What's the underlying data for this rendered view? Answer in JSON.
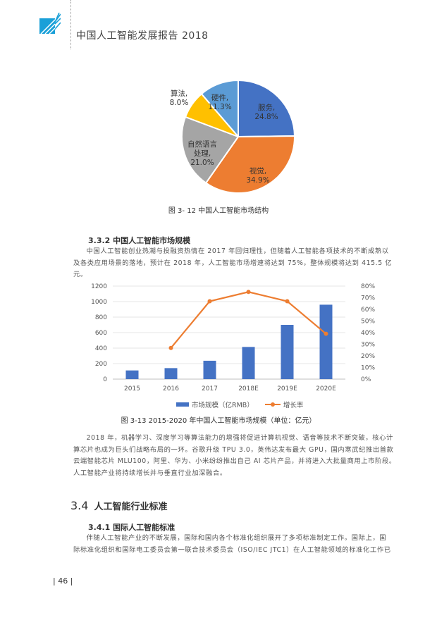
{
  "header": {
    "title": "中国人工智能发展报告 2018"
  },
  "colors": {
    "blue": "#4472c4",
    "orange": "#ed7d31",
    "gray": "#a5a5a5",
    "gold": "#ffc000",
    "light_blue": "#5b9bd5",
    "logo": "#1aa0d8"
  },
  "pie_chart": {
    "caption": "图 3- 12  中国人工智能市场结构"
  },
  "combo_chart": {
    "caption": "图 3-13  2015-2020 年中国人工智能市场规模（单位：亿元）"
  },
  "chart_data": [
    {
      "type": "pie",
      "slices": [
        {
          "label": "硬件,",
          "value_text": "11.3%",
          "value": 11.3,
          "color": "#5b9bd5"
        },
        {
          "label": "服务,",
          "value_text": "24.8%",
          "value": 24.8,
          "color": "#4472c4"
        },
        {
          "label": "视觉,",
          "value_text": "34.9%",
          "value": 34.9,
          "color": "#ed7d31"
        },
        {
          "label": "自然语言处理,",
          "label_lines": [
            "自然语言",
            "处理,"
          ],
          "value_text": "21.0%",
          "value": 21.0,
          "color": "#a5a5a5"
        },
        {
          "label": "算法,",
          "value_text": "8.0%",
          "value": 8.0,
          "color": "#ffc000"
        }
      ]
    },
    {
      "type": "bar+line",
      "categories": [
        "2015",
        "2016",
        "2017",
        "2018E",
        "2019E",
        "2020E"
      ],
      "series": [
        {
          "name": "市场规模（亿RMB）",
          "type": "bar",
          "axis": "left",
          "values": [
            112,
            142,
            237,
            415,
            700,
            960
          ],
          "color": "#4472c4"
        },
        {
          "name": "增长率",
          "type": "line",
          "axis": "right",
          "values": [
            null,
            26.8,
            67.0,
            75.0,
            67.0,
            39.0
          ],
          "color": "#ed7d31"
        }
      ],
      "left_axis": {
        "ylim": [
          0,
          1200
        ],
        "ticks": [
          "0",
          "200",
          "400",
          "600",
          "800",
          "1000",
          "1200"
        ]
      },
      "right_axis": {
        "ylim": [
          0,
          80
        ],
        "ticks": [
          "0%",
          "10%",
          "20%",
          "30%",
          "40%",
          "50%",
          "60%",
          "70%",
          "80%"
        ]
      },
      "grid": true,
      "legend_position": "bottom"
    }
  ],
  "section_332": {
    "title": "3.3.2 中国人工智能市场规模",
    "para_lines": [
      "中国人工智能创业热潮与投融资热情在 2017 年回归理性，但随着人工智能各项技术的不断成熟以",
      "及各类应用场景的落地，预计在 2018 年，人工智能市场增速将达到 75%，整体规模将达到 415.5 亿元。"
    ]
  },
  "para2_lines": [
    "2018 年，机器学习、深度学习等算法能力的增强将促进计算机视觉、语音等技术不断突破，核心计",
    "算芯片也成为巨头们战略布局的一环。谷歌升级 TPU 3.0，英伟达发布最大 GPU，国内寒武纪推出首款",
    "云端智能芯片 MLU100，阿里、华为、小米纷纷推出自己 AI 芯片产品，并将进入大批量商用上市阶段。",
    "人工智能产业将持续增长并与垂直行业加深融合。"
  ],
  "section_34": {
    "number": "3.4",
    "title": "人工智能行业标准"
  },
  "section_341": {
    "title": "3.4.1 国际人工智能标准",
    "para_lines": [
      "伴随人工智能产业的不断发展，国际和国内各个标准化组织展开了多项标准制定工作。国际上，国",
      "际标准化组织和国际电工委员会第一联合技术委员会（ISO/IEC JTC1）在人工智能领域的标准化工作已"
    ]
  },
  "footer": {
    "page_number": "| 46 |"
  }
}
